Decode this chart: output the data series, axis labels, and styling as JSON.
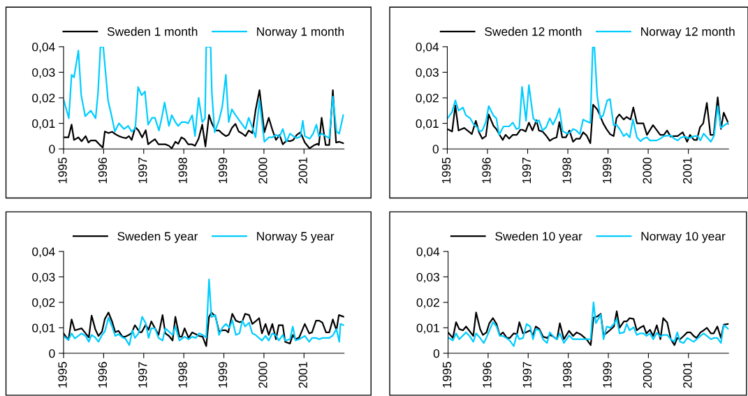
{
  "chart_data": [
    {
      "type": "line",
      "xlim": [
        1995,
        2002
      ],
      "ylim": [
        0,
        0.04
      ],
      "xticks": [
        1995,
        1996,
        1997,
        1998,
        1999,
        2000,
        2001
      ],
      "yticks": [
        {
          "value": 0,
          "label": "0"
        },
        {
          "value": 0.01,
          "label": "0,01"
        },
        {
          "value": 0.02,
          "label": "0,02"
        },
        {
          "value": 0.03,
          "label": "0,03"
        },
        {
          "value": 0.04,
          "label": "0,04"
        }
      ],
      "legend": "top",
      "grid": false,
      "marker": "none",
      "line_style": "solid",
      "series": [
        {
          "name": "Sweden 1 month",
          "color": "#000000",
          "x": [
            1995.0,
            1995.12,
            1995.2,
            1995.26,
            1995.37,
            1995.45,
            1995.55,
            1995.62,
            1995.68,
            1995.8,
            1995.89,
            1995.98,
            1996.03,
            1996.12,
            1996.21,
            1996.29,
            1996.38,
            1996.47,
            1996.56,
            1996.63,
            1996.7,
            1996.79,
            1996.87,
            1996.96,
            1997.05,
            1997.11,
            1997.19,
            1997.28,
            1997.37,
            1997.54,
            1997.63,
            1997.7,
            1997.79,
            1997.86,
            1997.94,
            1998.02,
            1998.11,
            1998.2,
            1998.28,
            1998.37,
            1998.46,
            1998.54,
            1998.63,
            1998.7,
            1998.79,
            1998.88,
            1998.96,
            1999.05,
            1999.12,
            1999.2,
            1999.29,
            1999.37,
            1999.46,
            1999.54,
            1999.62,
            1999.71,
            1999.79,
            1999.89,
            2000.01,
            2000.12,
            2000.21,
            2000.3,
            2000.39,
            2000.47,
            2000.56,
            2000.65,
            2000.73,
            2000.82,
            2000.91,
            2001.02,
            2001.14,
            2001.26,
            2001.34,
            2001.37,
            2001.44,
            2001.54,
            2001.63,
            2001.72,
            2001.8,
            2001.88,
            2001.98
          ],
          "values": [
            0.0045,
            0.0045,
            0.0095,
            0.0035,
            0.0045,
            0.003,
            0.005,
            0.0025,
            0.0033,
            0.0033,
            0.0018,
            0.0005,
            0.0068,
            0.0062,
            0.0067,
            0.0058,
            0.005,
            0.0045,
            0.0042,
            0.005,
            0.0035,
            0.0085,
            0.0072,
            0.0045,
            0.0073,
            0.0018,
            0.0028,
            0.0038,
            0.0018,
            0.0018,
            0.0012,
            0.0002,
            0.0028,
            0.002,
            0.0045,
            0.0038,
            0.0018,
            0.0018,
            0.0012,
            0.004,
            0.0095,
            0.001,
            0.0133,
            0.01,
            0.0072,
            0.0072,
            0.006,
            0.005,
            0.0055,
            0.0082,
            0.0098,
            0.0068,
            0.006,
            0.005,
            0.0072,
            0.0062,
            0.015,
            0.023,
            0.0065,
            0.0122,
            0.0075,
            0.0035,
            0.0055,
            0.0018,
            0.0032,
            0.003,
            0.0035,
            0.0055,
            0.0065,
            0.0025,
            0.0002,
            0.0015,
            0.002,
            0.0015,
            0.0122,
            0.0015,
            0.0015,
            0.023,
            0.0025,
            0.0028,
            0.0022
          ]
        },
        {
          "name": "Norway 1 month",
          "color": "#00ccff",
          "x": [
            1995.0,
            1995.13,
            1995.2,
            1995.26,
            1995.37,
            1995.44,
            1995.54,
            1995.68,
            1995.8,
            1995.86,
            1995.92,
            1995.99,
            1996.03,
            1996.11,
            1996.19,
            1996.28,
            1996.38,
            1996.51,
            1996.61,
            1996.7,
            1996.79,
            1996.86,
            1996.95,
            1997.03,
            1997.11,
            1997.21,
            1997.28,
            1997.38,
            1997.46,
            1997.52,
            1997.63,
            1997.7,
            1997.79,
            1997.86,
            1997.95,
            1998.04,
            1998.11,
            1998.21,
            1998.28,
            1998.37,
            1998.46,
            1998.53,
            1998.56,
            1998.67,
            1998.7,
            1998.77,
            1998.88,
            1998.96,
            1999.05,
            1999.12,
            1999.2,
            1999.28,
            1999.37,
            1999.54,
            1999.62,
            1999.71,
            1999.79,
            1999.89,
            2000.01,
            2000.12,
            2000.21,
            2000.3,
            2000.39,
            2000.47,
            2000.56,
            2000.65,
            2000.73,
            2000.82,
            2000.91,
            2000.97,
            2001.02,
            2001.14,
            2001.23,
            2001.31,
            2001.37,
            2001.44,
            2001.54,
            2001.63,
            2001.72,
            2001.81,
            2001.88,
            2001.98
          ],
          "values": [
            0.0193,
            0.012,
            0.029,
            0.028,
            0.0385,
            0.021,
            0.0128,
            0.015,
            0.012,
            0.022,
            0.04,
            0.04,
            0.033,
            0.019,
            0.0135,
            0.0068,
            0.01,
            0.0078,
            0.009,
            0.0068,
            0.008,
            0.0242,
            0.021,
            0.0225,
            0.0095,
            0.0122,
            0.0122,
            0.0072,
            0.013,
            0.0182,
            0.009,
            0.0132,
            0.0105,
            0.009,
            0.0105,
            0.0105,
            0.01,
            0.0132,
            0.005,
            0.02,
            0.0105,
            0.012,
            0.04,
            0.04,
            0.022,
            0.0065,
            0.0112,
            0.0165,
            0.029,
            0.0105,
            0.0155,
            0.0135,
            0.0115,
            0.0078,
            0.0122,
            0.0085,
            0.0045,
            0.019,
            0.0028,
            0.0045,
            0.0045,
            0.0055,
            0.0048,
            0.0078,
            0.0028,
            0.006,
            0.005,
            0.0042,
            0.0048,
            0.011,
            0.005,
            0.004,
            0.006,
            0.0095,
            0.005,
            0.006,
            0.005,
            0.0042,
            0.0205,
            0.0068,
            0.006,
            0.0132
          ]
        }
      ]
    },
    {
      "type": "line",
      "xlim": [
        1995,
        2002
      ],
      "ylim": [
        0,
        0.04
      ],
      "xticks": [
        1995,
        1996,
        1997,
        1998,
        1999,
        2000,
        2001
      ],
      "yticks": [
        {
          "value": 0,
          "label": "0"
        },
        {
          "value": 0.01,
          "label": "0,01"
        },
        {
          "value": 0.02,
          "label": "0,02"
        },
        {
          "value": 0.03,
          "label": "0,03"
        },
        {
          "value": 0.04,
          "label": "0,04"
        }
      ],
      "legend": "top",
      "grid": false,
      "marker": "none",
      "line_style": "solid",
      "series": [
        {
          "name": "Sweden 12 month",
          "color": "#000000",
          "x": [
            1995.0,
            1995.12,
            1995.2,
            1995.28,
            1995.42,
            1995.61,
            1995.71,
            1995.79,
            1995.87,
            1995.96,
            1996.03,
            1996.15,
            1996.22,
            1996.29,
            1996.38,
            1996.45,
            1996.54,
            1996.63,
            1996.73,
            1996.82,
            1996.87,
            1996.95,
            1997.03,
            1997.12,
            1997.22,
            1997.28,
            1997.37,
            1997.46,
            1997.55,
            1997.63,
            1997.72,
            1997.79,
            1997.86,
            1997.95,
            1998.04,
            1998.13,
            1998.21,
            1998.3,
            1998.38,
            1998.47,
            1998.56,
            1998.63,
            1998.73,
            1998.79,
            1998.88,
            1998.96,
            1999.05,
            1999.14,
            1999.21,
            1999.28,
            1999.39,
            1999.46,
            1999.56,
            1999.63,
            1999.72,
            1999.88,
            1999.97,
            2000.12,
            2000.3,
            2000.39,
            2000.47,
            2000.56,
            2000.65,
            2000.73,
            2000.86,
            2000.97,
            2001.04,
            2001.14,
            2001.21,
            2001.29,
            2001.37,
            2001.46,
            2001.55,
            2001.63,
            2001.73,
            2001.81,
            2001.88,
            2002.0
          ],
          "values": [
            0.0078,
            0.0068,
            0.017,
            0.0072,
            0.0082,
            0.0058,
            0.011,
            0.0065,
            0.004,
            0.005,
            0.0135,
            0.009,
            0.0078,
            0.0058,
            0.0035,
            0.0055,
            0.004,
            0.0055,
            0.0055,
            0.0075,
            0.0075,
            0.0068,
            0.0103,
            0.0072,
            0.0112,
            0.0072,
            0.0068,
            0.0052,
            0.0032,
            0.004,
            0.0045,
            0.0105,
            0.0045,
            0.0045,
            0.0072,
            0.0028,
            0.004,
            0.004,
            0.0065,
            0.0052,
            0.0022,
            0.0173,
            0.0155,
            0.0135,
            0.01,
            0.0078,
            0.0058,
            0.005,
            0.012,
            0.0135,
            0.0115,
            0.0125,
            0.0115,
            0.0162,
            0.01,
            0.01,
            0.0055,
            0.0093,
            0.0055,
            0.0055,
            0.0072,
            0.0048,
            0.005,
            0.005,
            0.0065,
            0.0028,
            0.0055,
            0.0035,
            0.0035,
            0.0085,
            0.01,
            0.018,
            0.0055,
            0.0055,
            0.0202,
            0.0078,
            0.0142,
            0.0098
          ]
        },
        {
          "name": "Norway 12 month",
          "color": "#00ccff",
          "x": [
            1995.0,
            1995.12,
            1995.2,
            1995.28,
            1995.39,
            1995.46,
            1995.57,
            1995.66,
            1995.74,
            1995.81,
            1995.87,
            1995.96,
            1996.03,
            1996.15,
            1996.22,
            1996.29,
            1996.4,
            1996.54,
            1996.63,
            1996.72,
            1996.79,
            1996.86,
            1996.96,
            1997.03,
            1997.14,
            1997.22,
            1997.28,
            1997.37,
            1997.46,
            1997.55,
            1997.63,
            1997.72,
            1997.79,
            1997.87,
            1997.98,
            1998.06,
            1998.13,
            1998.21,
            1998.3,
            1998.38,
            1998.47,
            1998.56,
            1998.62,
            1998.66,
            1998.73,
            1998.81,
            1998.88,
            1998.98,
            1999.05,
            1999.14,
            1999.21,
            1999.3,
            1999.39,
            1999.46,
            1999.54,
            1999.62,
            1999.72,
            1999.81,
            1999.88,
            1999.97,
            2000.04,
            2000.21,
            2000.3,
            2000.39,
            2000.56,
            2000.65,
            2000.73,
            2000.82,
            2000.91,
            2001.02,
            2001.14,
            2001.23,
            2001.3,
            2001.38,
            2001.48,
            2001.56,
            2001.64,
            2001.73,
            2001.81,
            2001.89,
            2002.0
          ],
          "values": [
            0.0118,
            0.0145,
            0.019,
            0.015,
            0.0162,
            0.0132,
            0.012,
            0.0095,
            0.0085,
            0.0068,
            0.0072,
            0.0105,
            0.0168,
            0.013,
            0.012,
            0.0055,
            0.0088,
            0.0088,
            0.0103,
            0.0078,
            0.0082,
            0.0243,
            0.011,
            0.025,
            0.012,
            0.0105,
            0.0112,
            0.0072,
            0.0085,
            0.012,
            0.0095,
            0.0125,
            0.0158,
            0.007,
            0.006,
            0.0065,
            0.0078,
            0.0072,
            0.0058,
            0.0115,
            0.0108,
            0.0102,
            0.04,
            0.04,
            0.021,
            0.012,
            0.0132,
            0.019,
            0.0195,
            0.0092,
            0.0095,
            0.0075,
            0.005,
            0.006,
            0.0045,
            0.0115,
            0.0045,
            0.003,
            0.004,
            0.0045,
            0.0033,
            0.0033,
            0.004,
            0.005,
            0.0053,
            0.004,
            0.0033,
            0.0045,
            0.0048,
            0.0042,
            0.005,
            0.005,
            0.0033,
            0.006,
            0.0042,
            0.0028,
            0.0052,
            0.0168,
            0.0082,
            0.0092,
            0.0103
          ]
        }
      ]
    },
    {
      "type": "line",
      "xlim": [
        1995,
        2002
      ],
      "ylim": [
        0,
        0.04
      ],
      "xticks": [
        1995,
        1996,
        1997,
        1998,
        1999,
        2000,
        2001
      ],
      "yticks": [
        {
          "value": 0,
          "label": "0"
        },
        {
          "value": 0.01,
          "label": "0,01"
        },
        {
          "value": 0.02,
          "label": "0,02"
        },
        {
          "value": 0.03,
          "label": "0,03"
        },
        {
          "value": 0.04,
          "label": "0,04"
        }
      ],
      "legend": "top",
      "grid": false,
      "marker": "none",
      "line_style": "solid",
      "series": [
        {
          "name": "Sweden 5 year",
          "color": "#000000",
          "x": [
            1995.0,
            1995.12,
            1995.2,
            1995.28,
            1995.45,
            1995.63,
            1995.7,
            1995.79,
            1995.87,
            1995.96,
            1996.03,
            1996.12,
            1996.21,
            1996.29,
            1996.37,
            1996.47,
            1996.54,
            1996.63,
            1996.7,
            1996.78,
            1996.9,
            1996.95,
            1997.05,
            1997.12,
            1997.19,
            1997.37,
            1997.47,
            1997.54,
            1997.63,
            1997.72,
            1997.79,
            1997.89,
            1997.95,
            1998.02,
            1998.12,
            1998.21,
            1998.3,
            1998.38,
            1998.47,
            1998.56,
            1998.63,
            1998.69,
            1998.79,
            1998.88,
            1998.96,
            1999.05,
            1999.11,
            1999.21,
            1999.3,
            1999.39,
            1999.46,
            1999.53,
            1999.63,
            1999.71,
            1999.79,
            1999.88,
            1999.95,
            2000.04,
            2000.12,
            2000.21,
            2000.3,
            2000.37,
            2000.47,
            2000.53,
            2000.65,
            2000.72,
            2000.79,
            2000.88,
            2001.02,
            2001.13,
            2001.2,
            2001.3,
            2001.38,
            2001.46,
            2001.55,
            2001.63,
            2001.72,
            2001.81,
            2001.87,
            2002.0
          ],
          "values": [
            0.0078,
            0.0052,
            0.0133,
            0.009,
            0.0098,
            0.0062,
            0.0148,
            0.0095,
            0.0068,
            0.0085,
            0.0135,
            0.016,
            0.0125,
            0.0083,
            0.0088,
            0.0065,
            0.0065,
            0.0072,
            0.008,
            0.011,
            0.0083,
            0.0083,
            0.0112,
            0.0092,
            0.0125,
            0.0072,
            0.015,
            0.0078,
            0.0068,
            0.005,
            0.0143,
            0.0065,
            0.0065,
            0.0098,
            0.006,
            0.0082,
            0.0075,
            0.0068,
            0.0065,
            0.0028,
            0.0143,
            0.016,
            0.0145,
            0.0085,
            0.009,
            0.009,
            0.0082,
            0.0155,
            0.0128,
            0.0122,
            0.0125,
            0.0155,
            0.015,
            0.0115,
            0.0125,
            0.0138,
            0.0078,
            0.0115,
            0.0072,
            0.0115,
            0.0055,
            0.011,
            0.011,
            0.0045,
            0.0038,
            0.0072,
            0.0055,
            0.0062,
            0.0115,
            0.0078,
            0.0082,
            0.0128,
            0.0128,
            0.012,
            0.0082,
            0.0082,
            0.0133,
            0.009,
            0.015,
            0.0143
          ]
        },
        {
          "name": "Norway 5 year",
          "color": "#00ccff",
          "x": [
            1995.0,
            1995.12,
            1995.2,
            1995.28,
            1995.45,
            1995.55,
            1995.63,
            1995.7,
            1995.79,
            1995.87,
            1995.96,
            1996.03,
            1996.12,
            1996.21,
            1996.29,
            1996.37,
            1996.47,
            1996.54,
            1996.64,
            1996.72,
            1996.78,
            1996.87,
            1996.96,
            1997.05,
            1997.12,
            1997.19,
            1997.28,
            1997.37,
            1997.47,
            1997.54,
            1997.63,
            1997.72,
            1997.79,
            1997.89,
            1998.02,
            1998.12,
            1998.21,
            1998.3,
            1998.38,
            1998.47,
            1998.56,
            1998.63,
            1998.69,
            1998.79,
            1998.88,
            1998.96,
            1999.05,
            1999.14,
            1999.21,
            1999.3,
            1999.39,
            1999.46,
            1999.53,
            1999.63,
            1999.71,
            1999.79,
            1999.95,
            2000.04,
            2000.12,
            2000.21,
            2000.3,
            2000.37,
            2000.47,
            2000.53,
            2000.65,
            2000.72,
            2000.79,
            2000.88,
            2001.02,
            2001.13,
            2001.2,
            2001.3,
            2001.38,
            2001.46,
            2001.63,
            2001.72,
            2001.81,
            2001.88,
            2001.91,
            2002.0
          ],
          "values": [
            0.0068,
            0.0052,
            0.0078,
            0.0058,
            0.0078,
            0.0068,
            0.0045,
            0.0072,
            0.0062,
            0.0045,
            0.0072,
            0.0085,
            0.014,
            0.0105,
            0.0068,
            0.0075,
            0.0062,
            0.0058,
            0.0032,
            0.009,
            0.006,
            0.0078,
            0.0143,
            0.0118,
            0.006,
            0.0098,
            0.0098,
            0.006,
            0.005,
            0.0098,
            0.0085,
            0.0072,
            0.0105,
            0.005,
            0.0065,
            0.0055,
            0.0065,
            0.006,
            0.0078,
            0.0072,
            0.0062,
            0.029,
            0.0142,
            0.015,
            0.0072,
            0.01,
            0.0115,
            0.01,
            0.013,
            0.0072,
            0.0078,
            0.0128,
            0.0105,
            0.012,
            0.0078,
            0.0072,
            0.005,
            0.0068,
            0.005,
            0.0078,
            0.007,
            0.005,
            0.0072,
            0.005,
            0.0055,
            0.0105,
            0.005,
            0.0055,
            0.0068,
            0.0045,
            0.006,
            0.006,
            0.0055,
            0.006,
            0.006,
            0.007,
            0.0095,
            0.0045,
            0.0115,
            0.011
          ]
        }
      ]
    },
    {
      "type": "line",
      "xlim": [
        1995,
        2002
      ],
      "ylim": [
        0,
        0.04
      ],
      "xticks": [
        1995,
        1996,
        1997,
        1998,
        1999,
        2000,
        2001
      ],
      "yticks": [
        {
          "value": 0,
          "label": "0"
        },
        {
          "value": 0.01,
          "label": "0,01"
        },
        {
          "value": 0.02,
          "label": "0,02"
        },
        {
          "value": 0.03,
          "label": "0,03"
        },
        {
          "value": 0.04,
          "label": "0,04"
        }
      ],
      "legend": "top",
      "grid": false,
      "marker": "none",
      "line_style": "solid",
      "series": [
        {
          "name": "Sweden 10 year",
          "color": "#000000",
          "x": [
            1995.0,
            1995.12,
            1995.2,
            1995.28,
            1995.37,
            1995.45,
            1995.63,
            1995.7,
            1995.8,
            1995.87,
            1995.96,
            1996.03,
            1996.12,
            1996.21,
            1996.29,
            1996.37,
            1996.47,
            1996.54,
            1996.64,
            1996.72,
            1996.78,
            1996.87,
            1996.96,
            1997.05,
            1997.12,
            1997.19,
            1997.28,
            1997.37,
            1997.47,
            1997.54,
            1997.63,
            1997.72,
            1997.79,
            1997.89,
            1998.02,
            1998.12,
            1998.21,
            1998.3,
            1998.38,
            1998.47,
            1998.56,
            1998.63,
            1998.73,
            1998.81,
            1998.88,
            1998.96,
            1999.05,
            1999.14,
            1999.21,
            1999.28,
            1999.39,
            1999.46,
            1999.53,
            1999.63,
            1999.71,
            1999.79,
            1999.88,
            1999.95,
            2000.04,
            2000.12,
            2000.21,
            2000.3,
            2000.37,
            2000.47,
            2000.56,
            2000.65,
            2000.72,
            2000.79,
            2000.88,
            2000.97,
            2001.05,
            2001.13,
            2001.2,
            2001.3,
            2001.38,
            2001.46,
            2001.56,
            2001.63,
            2001.72,
            2001.81,
            2001.88,
            2002.0
          ],
          "values": [
            0.0082,
            0.006,
            0.0122,
            0.0095,
            0.009,
            0.0105,
            0.0068,
            0.016,
            0.0095,
            0.0072,
            0.0082,
            0.0118,
            0.0138,
            0.0115,
            0.007,
            0.0082,
            0.006,
            0.006,
            0.0078,
            0.0075,
            0.0122,
            0.0078,
            0.0083,
            0.009,
            0.007,
            0.0105,
            0.0095,
            0.0065,
            0.006,
            0.0072,
            0.0065,
            0.0055,
            0.0118,
            0.0055,
            0.0088,
            0.0068,
            0.0082,
            0.0075,
            0.0065,
            0.0052,
            0.0032,
            0.014,
            0.0145,
            0.0155,
            0.007,
            0.008,
            0.0092,
            0.0105,
            0.0165,
            0.01,
            0.0125,
            0.0125,
            0.0138,
            0.0135,
            0.009,
            0.01,
            0.0108,
            0.0078,
            0.0092,
            0.0068,
            0.011,
            0.0055,
            0.0138,
            0.012,
            0.0055,
            0.0032,
            0.006,
            0.0055,
            0.0068,
            0.0082,
            0.0082,
            0.0068,
            0.006,
            0.0082,
            0.009,
            0.01,
            0.0078,
            0.0078,
            0.0105,
            0.006,
            0.0112,
            0.0115
          ]
        },
        {
          "name": "Norway 10 year",
          "color": "#00ccff",
          "x": [
            1995.0,
            1995.12,
            1995.2,
            1995.28,
            1995.45,
            1995.55,
            1995.63,
            1995.7,
            1995.79,
            1995.89,
            1995.96,
            1996.12,
            1996.21,
            1996.29,
            1996.37,
            1996.47,
            1996.54,
            1996.64,
            1996.72,
            1996.78,
            1996.87,
            1996.96,
            1997.05,
            1997.12,
            1997.19,
            1997.28,
            1997.37,
            1997.47,
            1997.54,
            1997.63,
            1997.72,
            1997.79,
            1997.89,
            1998.02,
            1998.12,
            1998.47,
            1998.56,
            1998.63,
            1998.69,
            1998.81,
            1998.88,
            1998.96,
            1999.05,
            1999.14,
            1999.21,
            1999.28,
            1999.39,
            1999.46,
            1999.53,
            1999.63,
            1999.71,
            1999.79,
            1999.88,
            1999.95,
            2000.04,
            2000.12,
            2000.21,
            2000.3,
            2000.37,
            2000.47,
            2000.56,
            2000.65,
            2000.72,
            2000.79,
            2000.88,
            2000.97,
            2001.13,
            2001.3,
            2001.38,
            2001.56,
            2001.63,
            2001.72,
            2001.81,
            2001.88,
            2002.0
          ],
          "values": [
            0.0062,
            0.005,
            0.0078,
            0.0055,
            0.0082,
            0.0065,
            0.0045,
            0.0078,
            0.0062,
            0.004,
            0.0062,
            0.0122,
            0.0105,
            0.0068,
            0.0068,
            0.0058,
            0.005,
            0.0028,
            0.0075,
            0.0055,
            0.006,
            0.0115,
            0.0105,
            0.0055,
            0.0095,
            0.009,
            0.0055,
            0.004,
            0.0082,
            0.0065,
            0.0055,
            0.0078,
            0.004,
            0.007,
            0.0055,
            0.0055,
            0.0055,
            0.02,
            0.0118,
            0.0152,
            0.0055,
            0.0105,
            0.01,
            0.0115,
            0.0135,
            0.0078,
            0.0082,
            0.0115,
            0.009,
            0.0102,
            0.0072,
            0.0078,
            0.0078,
            0.0068,
            0.0078,
            0.0055,
            0.008,
            0.0065,
            0.0072,
            0.0072,
            0.0055,
            0.0045,
            0.0082,
            0.0045,
            0.004,
            0.006,
            0.0045,
            0.0068,
            0.0078,
            0.0055,
            0.006,
            0.006,
            0.004,
            0.011,
            0.0095
          ]
        }
      ]
    }
  ]
}
